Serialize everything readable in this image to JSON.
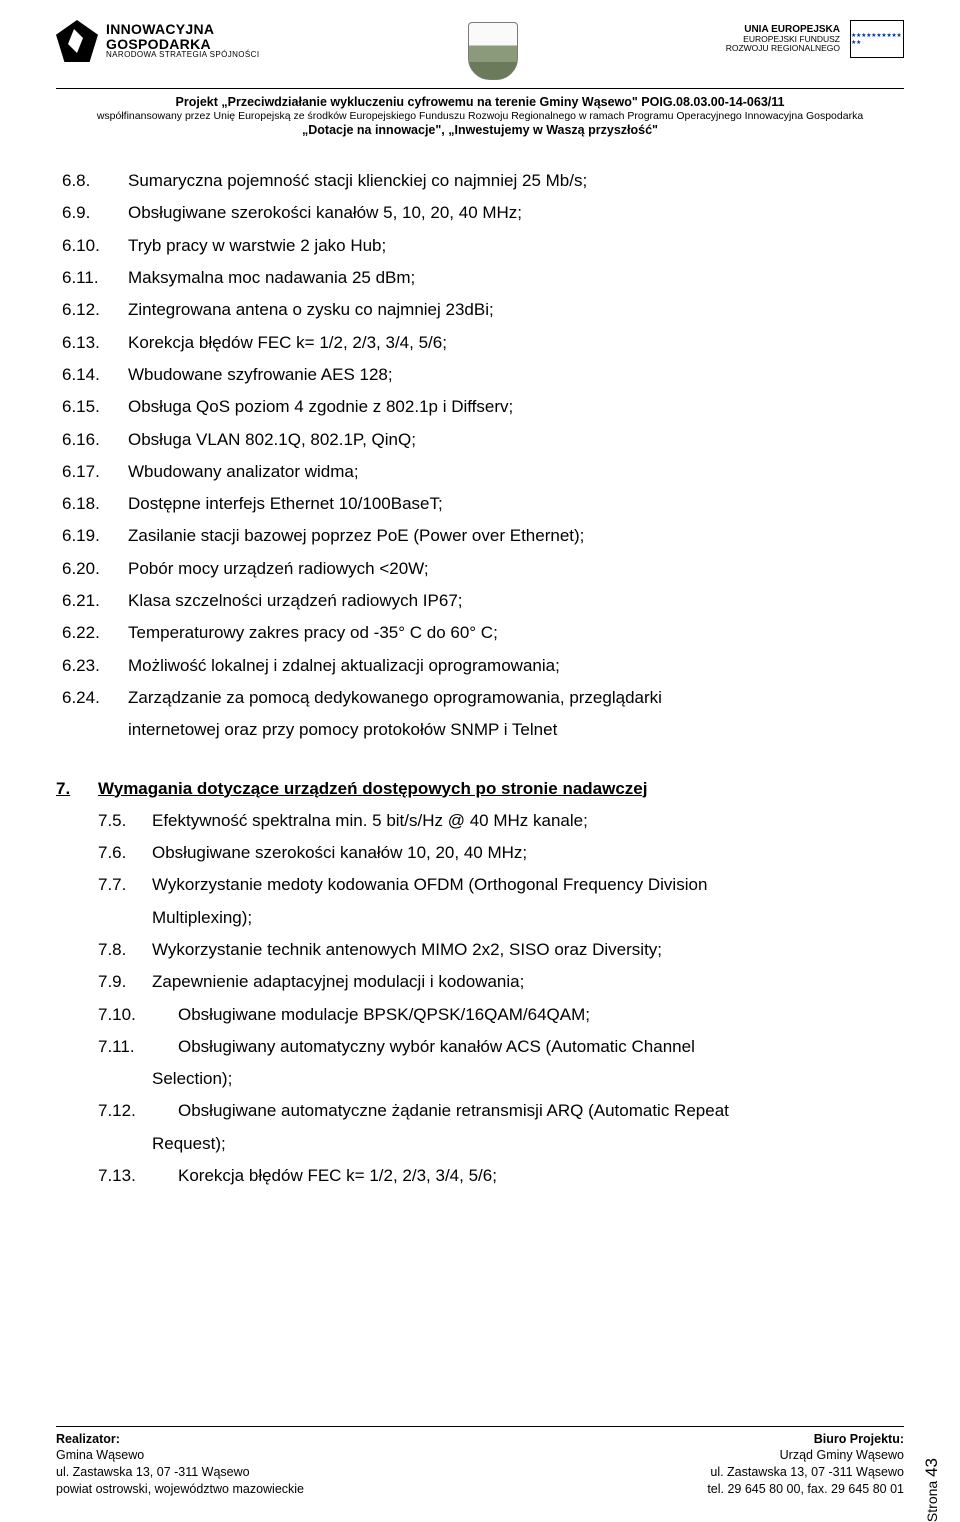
{
  "header": {
    "ig_line1": "INNOWACYJNA",
    "ig_line2": "GOSPODARKA",
    "ig_line3": "NARODOWA STRATEGIA SPÓJNOŚCI",
    "eu_line1": "UNIA EUROPEJSKA",
    "eu_line2": "EUROPEJSKI FUNDUSZ",
    "eu_line3": "ROZWOJU REGIONALNEGO"
  },
  "project": {
    "line1": "Projekt „Przeciwdziałanie wykluczeniu cyfrowemu na terenie Gminy Wąsewo\" POIG.08.03.00-14-063/11",
    "line2": "współfinansowany przez Unię Europejską ze środków Europejskiego Funduszu Rozwoju Regionalnego w ramach Programu Operacyjnego Innowacyjna Gospodarka",
    "line3": "„Dotacje na innowacje\", „Inwestujemy w Waszą przyszłość\""
  },
  "items6": [
    {
      "n": "6.8.",
      "t": "Sumaryczna pojemność stacji klienckiej co najmniej 25 Mb/s;"
    },
    {
      "n": "6.9.",
      "t": "Obsługiwane szerokości kanałów 5, 10, 20, 40 MHz;"
    },
    {
      "n": "6.10.",
      "t": "Tryb pracy w warstwie 2 jako Hub;"
    },
    {
      "n": "6.11.",
      "t": "Maksymalna moc nadawania 25 dBm;"
    },
    {
      "n": "6.12.",
      "t": "Zintegrowana antena o zysku co najmniej 23dBi;"
    },
    {
      "n": "6.13.",
      "t": "Korekcja błędów FEC k= 1/2, 2/3, 3/4, 5/6;"
    },
    {
      "n": "6.14.",
      "t": "Wbudowane szyfrowanie AES 128;"
    },
    {
      "n": "6.15.",
      "t": "Obsługa QoS poziom 4 zgodnie z 802.1p i Diffserv;"
    },
    {
      "n": "6.16.",
      "t": "Obsługa VLAN 802.1Q, 802.1P, QinQ;"
    },
    {
      "n": "6.17.",
      "t": "Wbudowany analizator widma;"
    },
    {
      "n": "6.18.",
      "t": "Dostępne interfejs Ethernet 10/100BaseT;"
    },
    {
      "n": "6.19.",
      "t": "Zasilanie stacji bazowej poprzez PoE (Power over Ethernet);"
    },
    {
      "n": "6.20.",
      "t": "Pobór mocy urządzeń radiowych <20W;"
    },
    {
      "n": "6.21.",
      "t": "Klasa szczelności urządzeń radiowych IP67;"
    },
    {
      "n": "6.22.",
      "t": "Temperaturowy zakres pracy od -35° C do 60° C;"
    },
    {
      "n": "6.23.",
      "t": "Możliwość lokalnej i zdalnej aktualizacji oprogramowania;"
    },
    {
      "n": "6.24.",
      "t": "Zarządzanie za pomocą dedykowanego oprogramowania, przeglądarki"
    }
  ],
  "item6_24_cont": "internetowej oraz przy pomocy protokołów SNMP i Telnet",
  "section7": {
    "num": "7.",
    "title": "Wymagania dotyczące urządzeń dostępowych po stronie nadawczej"
  },
  "items7a": [
    {
      "n": "7.5.",
      "t": "Efektywność spektralna min. 5 bit/s/Hz @ 40 MHz kanale;"
    },
    {
      "n": "7.6.",
      "t": "Obsługiwane szerokości kanałów 10, 20, 40 MHz;"
    },
    {
      "n": "7.7.",
      "t": "Wykorzystanie medoty kodowania OFDM (Orthogonal Frequency Division"
    }
  ],
  "item7_7_cont": "Multiplexing);",
  "items7b": [
    {
      "n": "7.8.",
      "t": "Wykorzystanie technik antenowych MIMO 2x2, SISO oraz Diversity;"
    },
    {
      "n": "7.9.",
      "t": "Zapewnienie adaptacyjnej modulacji i kodowania;"
    }
  ],
  "items7c": [
    {
      "n": "7.10.",
      "t": "Obsługiwane modulacje BPSK/QPSK/16QAM/64QAM;"
    },
    {
      "n": "7.11.",
      "t": "Obsługiwany automatyczny wybór kanałów ACS (Automatic Channel"
    }
  ],
  "item7_11_cont": "Selection);",
  "items7d": [
    {
      "n": "7.12.",
      "t": "Obsługiwane automatyczne żądanie retransmisji ARQ (Automatic Repeat"
    }
  ],
  "item7_12_cont": "Request);",
  "items7e": [
    {
      "n": "7.13.",
      "t": "Korekcja błędów FEC k= 1/2, 2/3, 3/4, 5/6;"
    }
  ],
  "footer": {
    "left_bold": "Realizator:",
    "left_l1": "Gmina Wąsewo",
    "left_l2": "ul. Zastawska 13, 07 -311 Wąsewo",
    "left_l3": "powiat ostrowski, województwo mazowieckie",
    "right_bold": "Biuro Projektu:",
    "right_l1": "Urząd Gminy Wąsewo",
    "right_l2": "ul. Zastawska 13, 07 -311 Wąsewo",
    "right_l3": "tel. 29 645 80 00, fax. 29 645 80 01"
  },
  "page_label": "Strona",
  "page_number": "43"
}
